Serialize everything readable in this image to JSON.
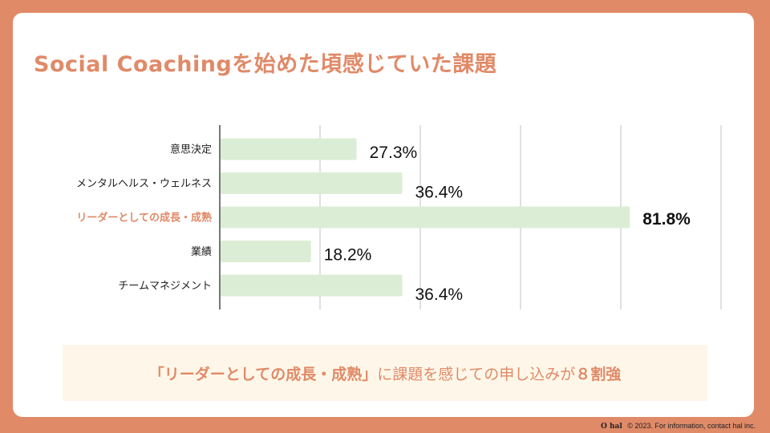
{
  "title": "Social Coachingを始めた頃感じていた課題",
  "chart_data": {
    "type": "bar",
    "orientation": "horizontal",
    "categories": [
      "意思決定",
      "メンタルヘルス・ウェルネス",
      "リーダーとしての成長・成熟",
      "業績",
      "チームマネジメント"
    ],
    "values": [
      27.3,
      36.4,
      81.8,
      18.2,
      36.4
    ],
    "value_labels": [
      "27.3%",
      "36.4%",
      "81.8%",
      "18.2%",
      "36.4%"
    ],
    "highlight_index": 2,
    "xlim": [
      0,
      100
    ],
    "grid": true,
    "colors": {
      "bar": "#DCEDD5",
      "grid": "#D6D6D6",
      "axis": "#777777",
      "highlight_text": "#E08A68"
    }
  },
  "callout": {
    "highlight": "「リーダーとしての成長・成熟」",
    "middle": "に課題を感じての申し込みが",
    "emphasis": "８割強"
  },
  "footer": {
    "logo": "O hal",
    "text": "© 2023. For information, contact hal inc."
  }
}
